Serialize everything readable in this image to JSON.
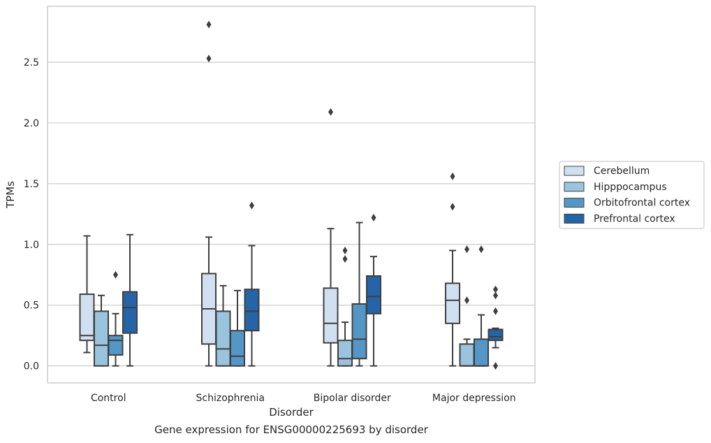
{
  "caption": "Gene expression for ENSG00000225693 by disorder",
  "chart_data": {
    "type": "boxplot",
    "title": "",
    "xlabel": "Disorder",
    "ylabel": "TPMs",
    "ylim": [
      -0.14,
      2.96
    ],
    "yticks": [
      "0.0",
      "0.5",
      "1.0",
      "1.5",
      "2.0",
      "2.5"
    ],
    "grid": "horizontal",
    "legend_position": "right",
    "categories": [
      "Control",
      "Schizophrenia",
      "Bipolar disorder",
      "Major depression"
    ],
    "series": [
      {
        "name": "Cerebellum",
        "color": "#d1e0f0",
        "boxes": [
          {
            "q1": 0.21,
            "median": 0.25,
            "q3": 0.59,
            "whislo": 0.11,
            "whishi": 1.07,
            "fliers": []
          },
          {
            "q1": 0.18,
            "median": 0.47,
            "q3": 0.76,
            "whislo": 0.0,
            "whishi": 1.06,
            "fliers": [
              2.81,
              2.53
            ]
          },
          {
            "q1": 0.19,
            "median": 0.35,
            "q3": 0.64,
            "whislo": 0.0,
            "whishi": 1.13,
            "fliers": [
              2.09
            ]
          },
          {
            "q1": 0.35,
            "median": 0.54,
            "q3": 0.68,
            "whislo": 0.0,
            "whishi": 0.95,
            "fliers": [
              1.56,
              1.31
            ]
          }
        ]
      },
      {
        "name": "Hipppocampus",
        "color": "#9ac3dd",
        "boxes": [
          {
            "q1": 0.0,
            "median": 0.17,
            "q3": 0.45,
            "whislo": 0.0,
            "whishi": 0.58,
            "fliers": []
          },
          {
            "q1": 0.0,
            "median": 0.14,
            "q3": 0.45,
            "whislo": 0.0,
            "whishi": 0.66,
            "fliers": []
          },
          {
            "q1": 0.0,
            "median": 0.06,
            "q3": 0.21,
            "whislo": 0.0,
            "whishi": 0.36,
            "fliers": [
              0.95,
              0.88
            ]
          },
          {
            "q1": 0.0,
            "median": 0.0,
            "q3": 0.18,
            "whislo": 0.0,
            "whishi": 0.22,
            "fliers": [
              0.96,
              0.54
            ]
          }
        ]
      },
      {
        "name": "Orbitofrontal cortex",
        "color": "#5497c6",
        "boxes": [
          {
            "q1": 0.09,
            "median": 0.21,
            "q3": 0.25,
            "whislo": 0.0,
            "whishi": 0.43,
            "fliers": [
              0.75
            ]
          },
          {
            "q1": 0.0,
            "median": 0.08,
            "q3": 0.29,
            "whislo": 0.0,
            "whishi": 0.62,
            "fliers": []
          },
          {
            "q1": 0.06,
            "median": 0.22,
            "q3": 0.51,
            "whislo": 0.0,
            "whishi": 1.18,
            "fliers": []
          },
          {
            "q1": 0.0,
            "median": 0.0,
            "q3": 0.22,
            "whislo": 0.0,
            "whishi": 0.42,
            "fliers": [
              0.96
            ]
          }
        ]
      },
      {
        "name": "Prefrontal cortex",
        "color": "#2564a7",
        "boxes": [
          {
            "q1": 0.27,
            "median": 0.48,
            "q3": 0.61,
            "whislo": 0.0,
            "whishi": 1.08,
            "fliers": []
          },
          {
            "q1": 0.29,
            "median": 0.45,
            "q3": 0.63,
            "whislo": 0.0,
            "whishi": 0.99,
            "fliers": [
              1.32
            ]
          },
          {
            "q1": 0.43,
            "median": 0.57,
            "q3": 0.74,
            "whislo": 0.0,
            "whishi": 0.9,
            "fliers": [
              1.22
            ]
          },
          {
            "q1": 0.21,
            "median": 0.24,
            "q3": 0.3,
            "whislo": 0.15,
            "whishi": 0.31,
            "fliers": [
              0.63,
              0.58,
              0.45,
              0.0
            ]
          }
        ]
      }
    ]
  }
}
